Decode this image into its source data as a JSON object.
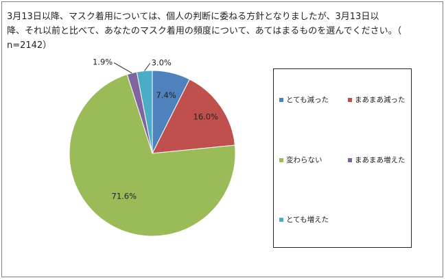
{
  "chart_data": {
    "type": "pie",
    "title": "3月13日以降、マスク着用については、個人の判断に委ねる方針となりましたが、3月13日以\n降、それ以前と比べて、あなたのマスク着用の頻度について、あてはまるものを選んでください。（\nn=2142）",
    "slices": [
      {
        "label": "とても減った",
        "value": 7.4,
        "value_label": "7.4%",
        "color": "#4f81bd"
      },
      {
        "label": "まあまあ減った",
        "value": 16.0,
        "value_label": "16.0%",
        "color": "#c0504d"
      },
      {
        "label": "変わらない",
        "value": 71.6,
        "value_label": "71.6%",
        "color": "#9bbb59"
      },
      {
        "label": "まあまあ増えた",
        "value": 1.9,
        "value_label": "1.9%",
        "color": "#8064a2"
      },
      {
        "label": "とても増えた",
        "value": 3.0,
        "value_label": "3.0%",
        "color": "#4bacc6"
      }
    ],
    "legend_position": "right"
  }
}
